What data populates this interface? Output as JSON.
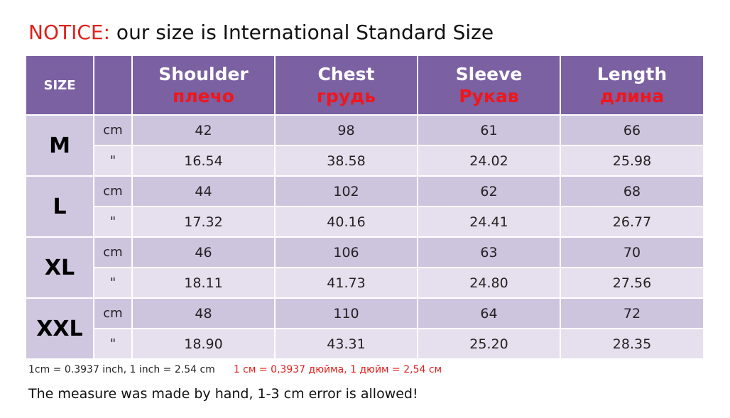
{
  "notice": {
    "label": "NOTICE:",
    "text": " our size is International Standard Size"
  },
  "table": {
    "size_header": "SIZE",
    "columns": [
      {
        "en": "Shoulder",
        "ru": "плечо"
      },
      {
        "en": "Chest",
        "ru": "грудь"
      },
      {
        "en": "Sleeve",
        "ru": "Рукав"
      },
      {
        "en": "Length",
        "ru": "длина"
      }
    ],
    "rows": [
      {
        "size": "M",
        "cm_unit": "cm",
        "in_unit": "\"",
        "cm": [
          "42",
          "98",
          "61",
          "66"
        ],
        "in": [
          "16.54",
          "38.58",
          "24.02",
          "25.98"
        ]
      },
      {
        "size": "L",
        "cm_unit": "cm",
        "in_unit": "\"",
        "cm": [
          "44",
          "102",
          "62",
          "68"
        ],
        "in": [
          "17.32",
          "40.16",
          "24.41",
          "26.77"
        ]
      },
      {
        "size": "XL",
        "cm_unit": "cm",
        "in_unit": "\"",
        "cm": [
          "46",
          "106",
          "63",
          "70"
        ],
        "in": [
          "18.11",
          "41.73",
          "24.80",
          "27.56"
        ]
      },
      {
        "size": "XXL",
        "cm_unit": "cm",
        "in_unit": "\"",
        "cm": [
          "48",
          "110",
          "64",
          "72"
        ],
        "in": [
          "18.90",
          "43.31",
          "25.20",
          "28.35"
        ]
      }
    ]
  },
  "conversion": {
    "en": "1cm = 0.3937 inch,  1 inch = 2.54 cm",
    "ru": "1 см = 0,3937 дюйма, 1 дюйм = 2,54 см"
  },
  "footer_note": "The measure was made by hand, 1-3 cm error is allowed!"
}
